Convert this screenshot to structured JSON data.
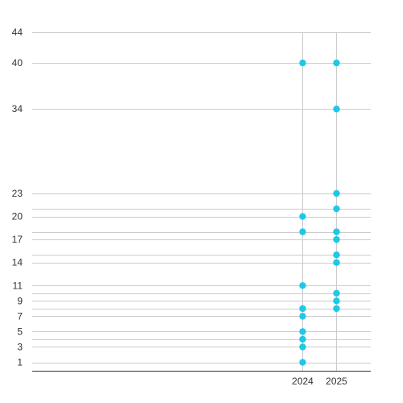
{
  "chart_data": {
    "type": "scatter",
    "title": "",
    "xlabel": "",
    "ylabel": "",
    "categories": [
      "2024",
      "2025"
    ],
    "y_ticks": [
      1,
      3,
      5,
      7,
      9,
      11,
      14,
      17,
      20,
      23,
      34,
      40,
      44
    ],
    "gridlines_y": [
      1,
      3,
      4,
      5,
      7,
      8,
      9,
      10,
      11,
      14,
      15,
      17,
      18,
      20,
      21,
      23,
      34,
      40,
      44
    ],
    "ylim": [
      -0.1,
      44
    ],
    "grid": true,
    "marker_color": "#1ec8e6",
    "series": [
      {
        "values": [
          {
            "x": "2024",
            "y": [
              1,
              3,
              4,
              5,
              7,
              8,
              11,
              18,
              20,
              40
            ]
          },
          {
            "x": "2025",
            "y": [
              8,
              9,
              10,
              14,
              15,
              17,
              18,
              21,
              23,
              34,
              40
            ]
          }
        ]
      }
    ]
  }
}
